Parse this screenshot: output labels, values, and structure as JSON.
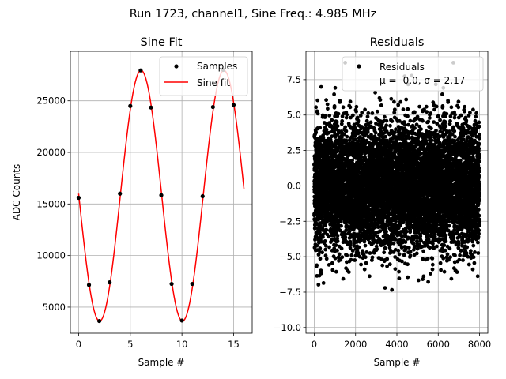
{
  "figure": {
    "suptitle": "Run 1723, channel1, Sine Freq.: 4.985 MHz"
  },
  "colors": {
    "fit_line": "#ff0000",
    "markers": "#000000",
    "grid": "#b0b0b0"
  },
  "chart_data": [
    {
      "type": "line",
      "title": "Sine Fit",
      "xlabel": "Sample #",
      "ylabel": "ADC Counts",
      "xlim": [
        -0.8,
        16.8
      ],
      "ylim": [
        2470,
        29800
      ],
      "xticks": [
        0,
        5,
        10,
        15
      ],
      "xtick_labels": [
        "0",
        "5",
        "10",
        "15"
      ],
      "yticks": [
        5000,
        10000,
        15000,
        20000,
        25000
      ],
      "ytick_labels": [
        "5000",
        "10000",
        "15000",
        "20000",
        "25000"
      ],
      "grid": true,
      "legend_position": "top-right",
      "series": [
        {
          "name": "Samples",
          "kind": "scatter",
          "x": [
            0,
            1,
            2,
            3,
            4,
            5,
            6,
            7,
            8,
            9,
            10,
            11,
            12,
            13,
            14,
            15
          ],
          "values": [
            15600,
            7150,
            3650,
            7400,
            16000,
            24500,
            27950,
            24350,
            15850,
            7250,
            3700,
            7250,
            15750,
            24400,
            28000,
            24600
          ]
        },
        {
          "name": "Sine fit",
          "kind": "line",
          "fit": {
            "offset": 15800,
            "amplitude": 12150,
            "period": 8.025,
            "phase_sample": 6.04
          },
          "x_range": [
            0,
            16
          ]
        }
      ]
    },
    {
      "type": "scatter",
      "title": "Residuals",
      "xlabel": "Sample #",
      "ylabel": "",
      "xlim": [
        -400,
        8400
      ],
      "ylim": [
        -10.4,
        9.5
      ],
      "xticks": [
        0,
        2000,
        4000,
        6000,
        8000
      ],
      "xtick_labels": [
        "0",
        "2000",
        "4000",
        "6000",
        "8000"
      ],
      "yticks": [
        -10.0,
        -7.5,
        -5.0,
        -2.5,
        0.0,
        2.5,
        5.0,
        7.5
      ],
      "ytick_labels": [
        "−10.0",
        "−7.5",
        "−5.0",
        "−2.5",
        "0.0",
        "2.5",
        "5.0",
        "7.5"
      ],
      "grid": true,
      "legend_position": "top-right",
      "series": [
        {
          "name": "Residuals",
          "stats_label": "μ = -0.0, σ = 2.17",
          "n_points": 8000,
          "x_range": [
            0,
            8000
          ],
          "mean": 0.0,
          "std": 2.17,
          "min_observed": -9.3,
          "max_observed": 8.7
        }
      ]
    }
  ]
}
